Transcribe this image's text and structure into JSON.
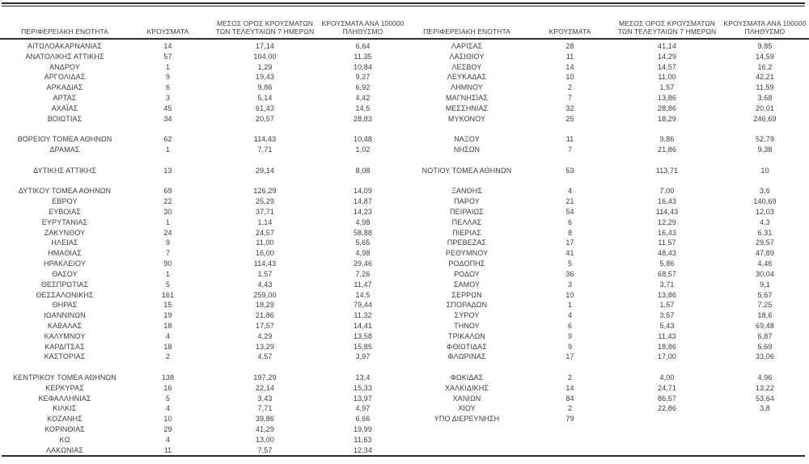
{
  "header": {
    "col1": "ΠΕΡΙΦΕΡΕΙΑΚΗ ΕΝΟΤΗΤΑ",
    "col2": "ΚΡΟΥΣΜΑΤΑ",
    "col3": [
      "ΜΕΣΟΣ ΟΡΟΣ ΚΡΟΥΣΜΑΤΩΝ",
      "ΤΩΝ ΤΕΛΕΥΤΑΙΩΝ 7 ΗΜΕΡΩΝ"
    ],
    "col4": [
      "ΚΡΟΥΣΜΑΤΑ ΑΝΑ 100000",
      "ΠΛΗΘΥΣΜΟ"
    ]
  },
  "colors": {
    "text": "#3d3d3d",
    "rule": "#2b2b2b",
    "background": "#ffffff"
  },
  "tables": {
    "left": {
      "rows": [
        {
          "name": "ΑΙΤΩΛΟΑΚΑΡΝΑΝΙΑΣ",
          "cases": "14",
          "avg7": "17,14",
          "per100k": "6,64"
        },
        {
          "name": "ΑΝΑΤΟΛΙΚΗΣ ΑΤΤΙΚΗΣ",
          "cases": "57",
          "avg7": "104,00",
          "per100k": "11,35"
        },
        {
          "name": "ΑΝΔΡΟΥ",
          "cases": "1",
          "avg7": "1,29",
          "per100k": "10,84"
        },
        {
          "name": "ΑΡΓΟΛΙΔΑΣ",
          "cases": "9",
          "avg7": "19,43",
          "per100k": "9,27"
        },
        {
          "name": "ΑΡΚΑΔΙΑΣ",
          "cases": "6",
          "avg7": "9,86",
          "per100k": "6,92"
        },
        {
          "name": "ΑΡΤΑΣ",
          "cases": "3",
          "avg7": "5,14",
          "per100k": "4,42"
        },
        {
          "name": "ΑΧΑΪΑΣ",
          "cases": "45",
          "avg7": "61,43",
          "per100k": "14,5"
        },
        {
          "name": "ΒΟΙΩΤΙΑΣ",
          "cases": "34",
          "avg7": "20,57",
          "per100k": "28,83"
        },
        {
          "name": "",
          "cases": "",
          "avg7": "",
          "per100k": ""
        },
        {
          "name": "ΒΟΡΕΙΟΥ ΤΟΜΕΑ ΑΘΗΝΩΝ",
          "cases": "62",
          "avg7": "114,43",
          "per100k": "10,48"
        },
        {
          "name": "ΔΡΑΜΑΣ",
          "cases": "1",
          "avg7": "7,71",
          "per100k": "1,02"
        },
        {
          "name": "",
          "cases": "",
          "avg7": "",
          "per100k": ""
        },
        {
          "name": "ΔΥΤΙΚΗΣ ΑΤΤΙΚΗΣ",
          "cases": "13",
          "avg7": "29,14",
          "per100k": "8,08"
        },
        {
          "name": "",
          "cases": "",
          "avg7": "",
          "per100k": ""
        },
        {
          "name": "ΔΥΤΙΚΟΥ ΤΟΜΕΑ ΑΘΗΝΩΝ",
          "cases": "69",
          "avg7": "126,29",
          "per100k": "14,09"
        },
        {
          "name": "ΕΒΡΟΥ",
          "cases": "22",
          "avg7": "25,29",
          "per100k": "14,87"
        },
        {
          "name": "ΕΥΒΟΙΑΣ",
          "cases": "30",
          "avg7": "37,71",
          "per100k": "14,23"
        },
        {
          "name": "ΕΥΡΥΤΑΝΙΑΣ",
          "cases": "1",
          "avg7": "1,14",
          "per100k": "4,98"
        },
        {
          "name": "ΖΑΚΥΝΘΟΥ",
          "cases": "24",
          "avg7": "24,57",
          "per100k": "58,88"
        },
        {
          "name": "ΗΛΕΙΑΣ",
          "cases": "9",
          "avg7": "11,00",
          "per100k": "5,65"
        },
        {
          "name": "ΗΜΑΘΙΑΣ",
          "cases": "7",
          "avg7": "16,00",
          "per100k": "4,98"
        },
        {
          "name": "ΗΡΑΚΛΕΙΟΥ",
          "cases": "90",
          "avg7": "114,43",
          "per100k": "29,46"
        },
        {
          "name": "ΘΑΣΟΥ",
          "cases": "1",
          "avg7": "1,57",
          "per100k": "7,26"
        },
        {
          "name": "ΘΕΣΠΡΩΤΙΑΣ",
          "cases": "5",
          "avg7": "4,43",
          "per100k": "11,47"
        },
        {
          "name": "ΘΕΣΣΑΛΟΝΙΚΗΣ",
          "cases": "161",
          "avg7": "259,00",
          "per100k": "14,5"
        },
        {
          "name": "ΘΗΡΑΣ",
          "cases": "15",
          "avg7": "18,29",
          "per100k": "79,44"
        },
        {
          "name": "ΙΩΑΝΝΙΝΩΝ",
          "cases": "19",
          "avg7": "21,86",
          "per100k": "11,32"
        },
        {
          "name": "ΚΑΒΑΛΑΣ",
          "cases": "18",
          "avg7": "17,57",
          "per100k": "14,41"
        },
        {
          "name": "ΚΑΛΥΜΝΟΥ",
          "cases": "4",
          "avg7": "4,29",
          "per100k": "13,58"
        },
        {
          "name": "ΚΑΡΔΙΤΣΑΣ",
          "cases": "18",
          "avg7": "13,29",
          "per100k": "15,85"
        },
        {
          "name": "ΚΑΣΤΟΡΙΑΣ",
          "cases": "2",
          "avg7": "4,57",
          "per100k": "3,97"
        },
        {
          "name": "",
          "cases": "",
          "avg7": "",
          "per100k": ""
        },
        {
          "name": "ΚΕΝΤΡΙΚΟΥ ΤΟΜΕΑ ΑΘΗΝΩΝ",
          "cases": "138",
          "avg7": "197,29",
          "per100k": "13,4"
        },
        {
          "name": "ΚΕΡΚΥΡΑΣ",
          "cases": "16",
          "avg7": "22,14",
          "per100k": "15,33"
        },
        {
          "name": "ΚΕΦΑΛΛΗΝΙΑΣ",
          "cases": "5",
          "avg7": "3,43",
          "per100k": "13,97"
        },
        {
          "name": "ΚΙΛΚΙΣ",
          "cases": "4",
          "avg7": "7,71",
          "per100k": "4,97"
        },
        {
          "name": "ΚΟΖΑΝΗΣ",
          "cases": "10",
          "avg7": "39,86",
          "per100k": "6,66"
        },
        {
          "name": "ΚΟΡΙΝΘΙΑΣ",
          "cases": "29",
          "avg7": "41,29",
          "per100k": "19,99"
        },
        {
          "name": "ΚΩ",
          "cases": "4",
          "avg7": "13,00",
          "per100k": "11,63"
        },
        {
          "name": "ΛΑΚΩΝΙΑΣ",
          "cases": "11",
          "avg7": "7,57",
          "per100k": "12,34"
        }
      ]
    },
    "right": {
      "rows": [
        {
          "name": "ΛΑΡΙΣΑΣ",
          "cases": "28",
          "avg7": "41,14",
          "per100k": "9,85"
        },
        {
          "name": "ΛΑΣΙΘΙΟΥ",
          "cases": "11",
          "avg7": "14,29",
          "per100k": "14,59"
        },
        {
          "name": "ΛΕΣΒΟΥ",
          "cases": "14",
          "avg7": "14,57",
          "per100k": "16,2"
        },
        {
          "name": "ΛΕΥΚΑΔΑΣ",
          "cases": "10",
          "avg7": "11,00",
          "per100k": "42,21"
        },
        {
          "name": "ΛΗΜΝΟΥ",
          "cases": "2",
          "avg7": "1,57",
          "per100k": "11,59"
        },
        {
          "name": "ΜΑΓΝΗΣΙΑΣ",
          "cases": "7",
          "avg7": "13,86",
          "per100k": "3,68"
        },
        {
          "name": "ΜΕΣΣΗΝΙΑΣ",
          "cases": "32",
          "avg7": "28,86",
          "per100k": "20,01"
        },
        {
          "name": "ΜΥΚΟΝΟΥ",
          "cases": "25",
          "avg7": "18,29",
          "per100k": "246,69"
        },
        {
          "name": "",
          "cases": "",
          "avg7": "",
          "per100k": ""
        },
        {
          "name": "ΝΑΞΟΥ",
          "cases": "11",
          "avg7": "9,86",
          "per100k": "52,79"
        },
        {
          "name": "ΝΗΣΩΝ",
          "cases": "7",
          "avg7": "21,86",
          "per100k": "9,38"
        },
        {
          "name": "",
          "cases": "",
          "avg7": "",
          "per100k": ""
        },
        {
          "name": "ΝΟΤΙΟΥ ΤΟΜΕΑ ΑΘΗΝΩΝ",
          "cases": "53",
          "avg7": "113,71",
          "per100k": "10"
        },
        {
          "name": "",
          "cases": "",
          "avg7": "",
          "per100k": ""
        },
        {
          "name": "ΞΑΝΘΗΣ",
          "cases": "4",
          "avg7": "7,00",
          "per100k": "3,6"
        },
        {
          "name": "ΠΑΡΟΥ",
          "cases": "21",
          "avg7": "16,43",
          "per100k": "140,69"
        },
        {
          "name": "ΠΕΙΡΑΙΩΣ",
          "cases": "54",
          "avg7": "114,43",
          "per100k": "12,03"
        },
        {
          "name": "ΠΕΛΛΑΣ",
          "cases": "6",
          "avg7": "12,29",
          "per100k": "4,3"
        },
        {
          "name": "ΠΙΕΡΙΑΣ",
          "cases": "8",
          "avg7": "16,43",
          "per100k": "6,31"
        },
        {
          "name": "ΠΡΕΒΕΖΑΣ",
          "cases": "17",
          "avg7": "11,57",
          "per100k": "29,57"
        },
        {
          "name": "ΡΕΘΥΜΝΟΥ",
          "cases": "41",
          "avg7": "48,43",
          "per100k": "47,89"
        },
        {
          "name": "ΡΟΔΟΠΗΣ",
          "cases": "5",
          "avg7": "5,86",
          "per100k": "4,46"
        },
        {
          "name": "ΡΟΔΟΥ",
          "cases": "36",
          "avg7": "68,57",
          "per100k": "30,04"
        },
        {
          "name": "ΣΑΜΟΥ",
          "cases": "3",
          "avg7": "3,71",
          "per100k": "9,1"
        },
        {
          "name": "ΣΕΡΡΩΝ",
          "cases": "10",
          "avg7": "13,86",
          "per100k": "5,67"
        },
        {
          "name": "ΣΠΟΡΑΔΩΝ",
          "cases": "1",
          "avg7": "1,57",
          "per100k": "7,25"
        },
        {
          "name": "ΣΥΡΟΥ",
          "cases": "4",
          "avg7": "3,57",
          "per100k": "18,6"
        },
        {
          "name": "ΤΗΝΟΥ",
          "cases": "6",
          "avg7": "5,43",
          "per100k": "69,48"
        },
        {
          "name": "ΤΡΙΚΑΛΩΝ",
          "cases": "9",
          "avg7": "11,43",
          "per100k": "6,87"
        },
        {
          "name": "ΦΘΙΩΤΙΔΑΣ",
          "cases": "9",
          "avg7": "18,86",
          "per100k": "5,69"
        },
        {
          "name": "ΦΛΩΡΙΝΑΣ",
          "cases": "17",
          "avg7": "17,00",
          "per100k": "33,06"
        },
        {
          "name": "",
          "cases": "",
          "avg7": "",
          "per100k": ""
        },
        {
          "name": "ΦΩΚΙΔΑΣ",
          "cases": "2",
          "avg7": "4,00",
          "per100k": "4,96"
        },
        {
          "name": "ΧΑΛΚΙΔΙΚΗΣ",
          "cases": "14",
          "avg7": "24,71",
          "per100k": "13,22"
        },
        {
          "name": "ΧΑΝΙΩΝ",
          "cases": "84",
          "avg7": "86,57",
          "per100k": "53,64"
        },
        {
          "name": "ΧΙΟΥ",
          "cases": "2",
          "avg7": "22,86",
          "per100k": "3,8"
        },
        {
          "name": "ΥΠΟ ΔΙΕΡΕΥΝΗΣΗ",
          "cases": "79",
          "avg7": "",
          "per100k": ""
        },
        {
          "name": "",
          "cases": "",
          "avg7": "",
          "per100k": ""
        },
        {
          "name": "",
          "cases": "",
          "avg7": "",
          "per100k": ""
        },
        {
          "name": "",
          "cases": "",
          "avg7": "",
          "per100k": ""
        }
      ]
    }
  }
}
